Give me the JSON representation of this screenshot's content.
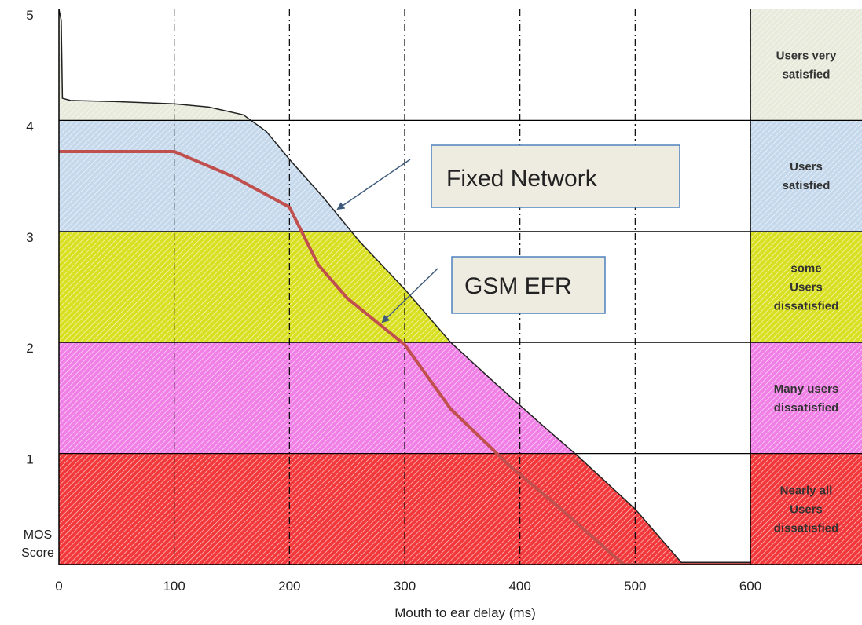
{
  "chart_data": {
    "type": "line",
    "xlabel": "Mouth to ear  delay (ms)",
    "ylabel": [
      "MOS",
      "Score"
    ],
    "xlim": [
      0,
      600
    ],
    "ylim": [
      0,
      5
    ],
    "x_ticks": [
      "0",
      "100",
      "200",
      "300",
      "400",
      "500",
      "600"
    ],
    "y_ticks": [
      "1",
      "2",
      "3",
      "4",
      "5"
    ],
    "grid": {
      "x": "dash-dot",
      "y": "band boundaries"
    },
    "bands": [
      {
        "from": 4,
        "to": 5,
        "color": "#e8eadb",
        "label": [
          "Users very",
          "satisfied"
        ]
      },
      {
        "from": 3,
        "to": 4,
        "color": "#c6d9ec",
        "label": [
          "Users",
          "satisfied"
        ]
      },
      {
        "from": 2,
        "to": 3,
        "color": "#d9e021",
        "label": [
          "some",
          "Users",
          "dissatisfied"
        ]
      },
      {
        "from": 1,
        "to": 2,
        "color": "#f07fe6",
        "label": [
          "Many users",
          "dissatisfied"
        ]
      },
      {
        "from": 0,
        "to": 1,
        "color": "#f2383a",
        "label": [
          "Nearly all",
          "Users",
          "dissatisfied"
        ]
      }
    ],
    "series": [
      {
        "name": "Fixed Network",
        "color": "#222222",
        "x": [
          0,
          2,
          3,
          10,
          50,
          100,
          130,
          160,
          180,
          200,
          230,
          260,
          300,
          340,
          380,
          420,
          450,
          500,
          540,
          600
        ],
        "y": [
          5,
          4.9,
          4.2,
          4.18,
          4.17,
          4.15,
          4.12,
          4.05,
          3.9,
          3.65,
          3.3,
          2.92,
          2.48,
          2.0,
          1.62,
          1.25,
          0.98,
          0.5,
          0.02,
          0.02
        ]
      },
      {
        "name": "GSM EFR",
        "color": "#c0504d",
        "x": [
          0,
          100,
          150,
          200,
          225,
          250,
          300,
          340,
          390,
          430,
          490,
          540,
          600
        ],
        "y": [
          3.72,
          3.72,
          3.5,
          3.22,
          2.7,
          2.4,
          1.98,
          1.4,
          0.9,
          0.55,
          0.0,
          0.0,
          0.0
        ]
      }
    ],
    "annotations": [
      {
        "text": "Fixed Network",
        "points_to_x": 243,
        "points_to_y": 3.22
      },
      {
        "text": "GSM EFR",
        "points_to_x": 281,
        "points_to_y": 2.15
      }
    ]
  }
}
